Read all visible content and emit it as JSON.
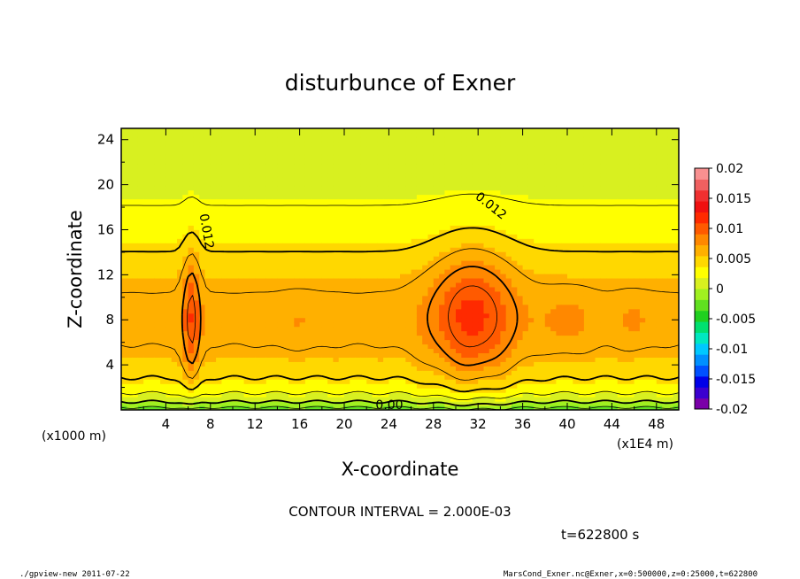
{
  "chart_data": {
    "type": "heatmap",
    "title": "disturbunce of Exner",
    "xlabel": "X-coordinate",
    "ylabel": "Z-coordinate",
    "x_unit_label": "(x1E4 m)",
    "z_unit_label": "(x1000 m)",
    "xlim": [
      0,
      50
    ],
    "ylim": [
      0,
      25
    ],
    "xticks": [
      "4",
      "8",
      "12",
      "16",
      "20",
      "24",
      "28",
      "32",
      "36",
      "40",
      "44",
      "48"
    ],
    "yticks": [
      "4",
      "8",
      "12",
      "16",
      "20",
      "24"
    ],
    "contour_interval_text": "CONTOUR INTERVAL = 2.000E-03",
    "time_label": "t=622800 s",
    "contour_labels": [
      "0.012",
      "0.012",
      "0.00"
    ],
    "colorbar": {
      "range": [
        -0.02,
        0.02
      ],
      "tick_labels": [
        "0.02",
        "0.015",
        "0.01",
        "0.005",
        "0",
        "-0.005",
        "-0.01",
        "-0.015",
        "-0.02"
      ],
      "colors": [
        "#7a00a8",
        "#3b00d0",
        "#0000e8",
        "#0050ff",
        "#0090ff",
        "#00c8ff",
        "#00e8c0",
        "#00e070",
        "#20d020",
        "#60e020",
        "#a0f020",
        "#d8f020",
        "#ffff00",
        "#ffd800",
        "#ffb000",
        "#ff8800",
        "#ff5a00",
        "#ff2a00",
        "#f01010",
        "#f03030",
        "#f06060",
        "#f89090"
      ]
    }
  },
  "footer": {
    "left": "./gpview-new   2011-07-22",
    "right": "MarsCond_Exner.nc@Exner,x=0:500000,z=0:25000,t=622800"
  }
}
